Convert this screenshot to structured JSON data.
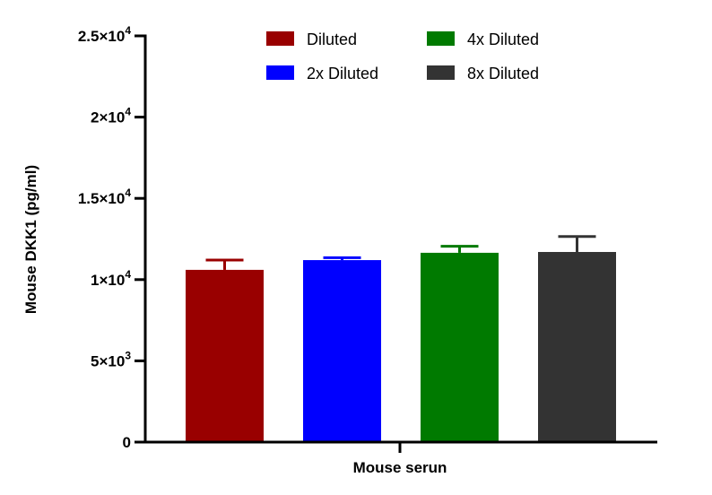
{
  "chart_data": {
    "type": "bar",
    "xlabel": "Mouse serun",
    "ylabel": "Mouse DKK1 (pg/ml)",
    "ylim": [
      0,
      25000
    ],
    "yticks": [
      {
        "value": 0,
        "label": "0"
      },
      {
        "value": 5000,
        "base": "5×10",
        "exp": "3"
      },
      {
        "value": 10000,
        "base": "1×10",
        "exp": "4"
      },
      {
        "value": 15000,
        "base": "1.5×10",
        "exp": "4"
      },
      {
        "value": 20000,
        "base": "2×10",
        "exp": "4"
      },
      {
        "value": 25000,
        "base": "2.5×10",
        "exp": "4"
      }
    ],
    "series": [
      {
        "name": "Diluted",
        "value": 10600,
        "error": 600,
        "color": "#990000"
      },
      {
        "name": "2x Diluted",
        "value": 11200,
        "error": 150,
        "color": "#0000ff"
      },
      {
        "name": "4x Diluted",
        "value": 11650,
        "error": 400,
        "color": "#007a00"
      },
      {
        "name": "8x Diluted",
        "value": 11700,
        "error": 950,
        "color": "#333333"
      }
    ],
    "legend_placement": "top"
  }
}
